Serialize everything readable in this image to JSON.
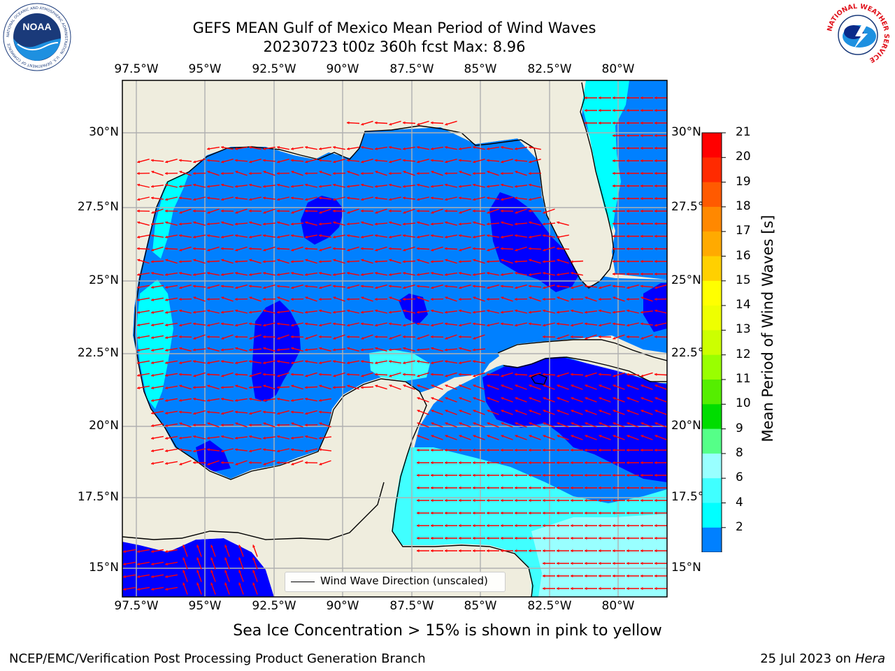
{
  "header": {
    "title_line1": "GEFS MEAN Gulf of Mexico Mean Period of Wind Waves",
    "title_line2": "20230723 t00z 360h fcst   Max: 8.96"
  },
  "logos": {
    "noaa_text": "NOAA",
    "noaa_ring": "NATIONAL OCEANIC AND ATMOSPHERIC ADMINISTRATION · U.S. DEPARTMENT OF COMMERCE",
    "nws_ring": "NATIONAL WEATHER SERVICE"
  },
  "map": {
    "lon_labels": [
      "97.5°W",
      "95°W",
      "92.5°W",
      "90°W",
      "87.5°W",
      "85°W",
      "82.5°W",
      "80°W"
    ],
    "lat_labels": [
      "30°N",
      "27.5°N",
      "25°N",
      "22.5°N",
      "20°N",
      "17.5°N",
      "15°N"
    ],
    "legend_label": "Wind Wave Direction (unscaled)",
    "colors": {
      "land": "#efedde",
      "level_lt2": "#0000ff",
      "level_2_4": "#0080ff",
      "level_4_6": "#00ffff",
      "level_6_8": "#40ffff",
      "level_8_9": "#99ffff",
      "arrow": "#ff0000",
      "grid": "#b0b0b0",
      "coast": "#000000"
    }
  },
  "colorbar": {
    "title": "Mean Period of Wind Waves [s]",
    "ticks": [
      "21",
      "20",
      "19",
      "18",
      "17",
      "16",
      "15",
      "14",
      "13",
      "12",
      "11",
      "10",
      "9",
      "8",
      "6",
      "4",
      "2"
    ],
    "colors": [
      "#ff0000",
      "#ff2a00",
      "#ff5a00",
      "#ff8800",
      "#ffaa00",
      "#ffd000",
      "#ffff00",
      "#eeff00",
      "#ccff00",
      "#99ff00",
      "#55ee00",
      "#00dd00",
      "#55ff88",
      "#99ffff",
      "#40ffff",
      "#00ffff",
      "#0080ff"
    ],
    "extend_color": "#0000ff"
  },
  "footer": {
    "sea_ice_note": "Sea Ice Concentration > 15% is shown in pink to yellow",
    "left": "NCEP/EMC/Verification Post Processing Product Generation Branch",
    "right_date": "25 Jul 2023 on ",
    "right_host": "Hera"
  }
}
